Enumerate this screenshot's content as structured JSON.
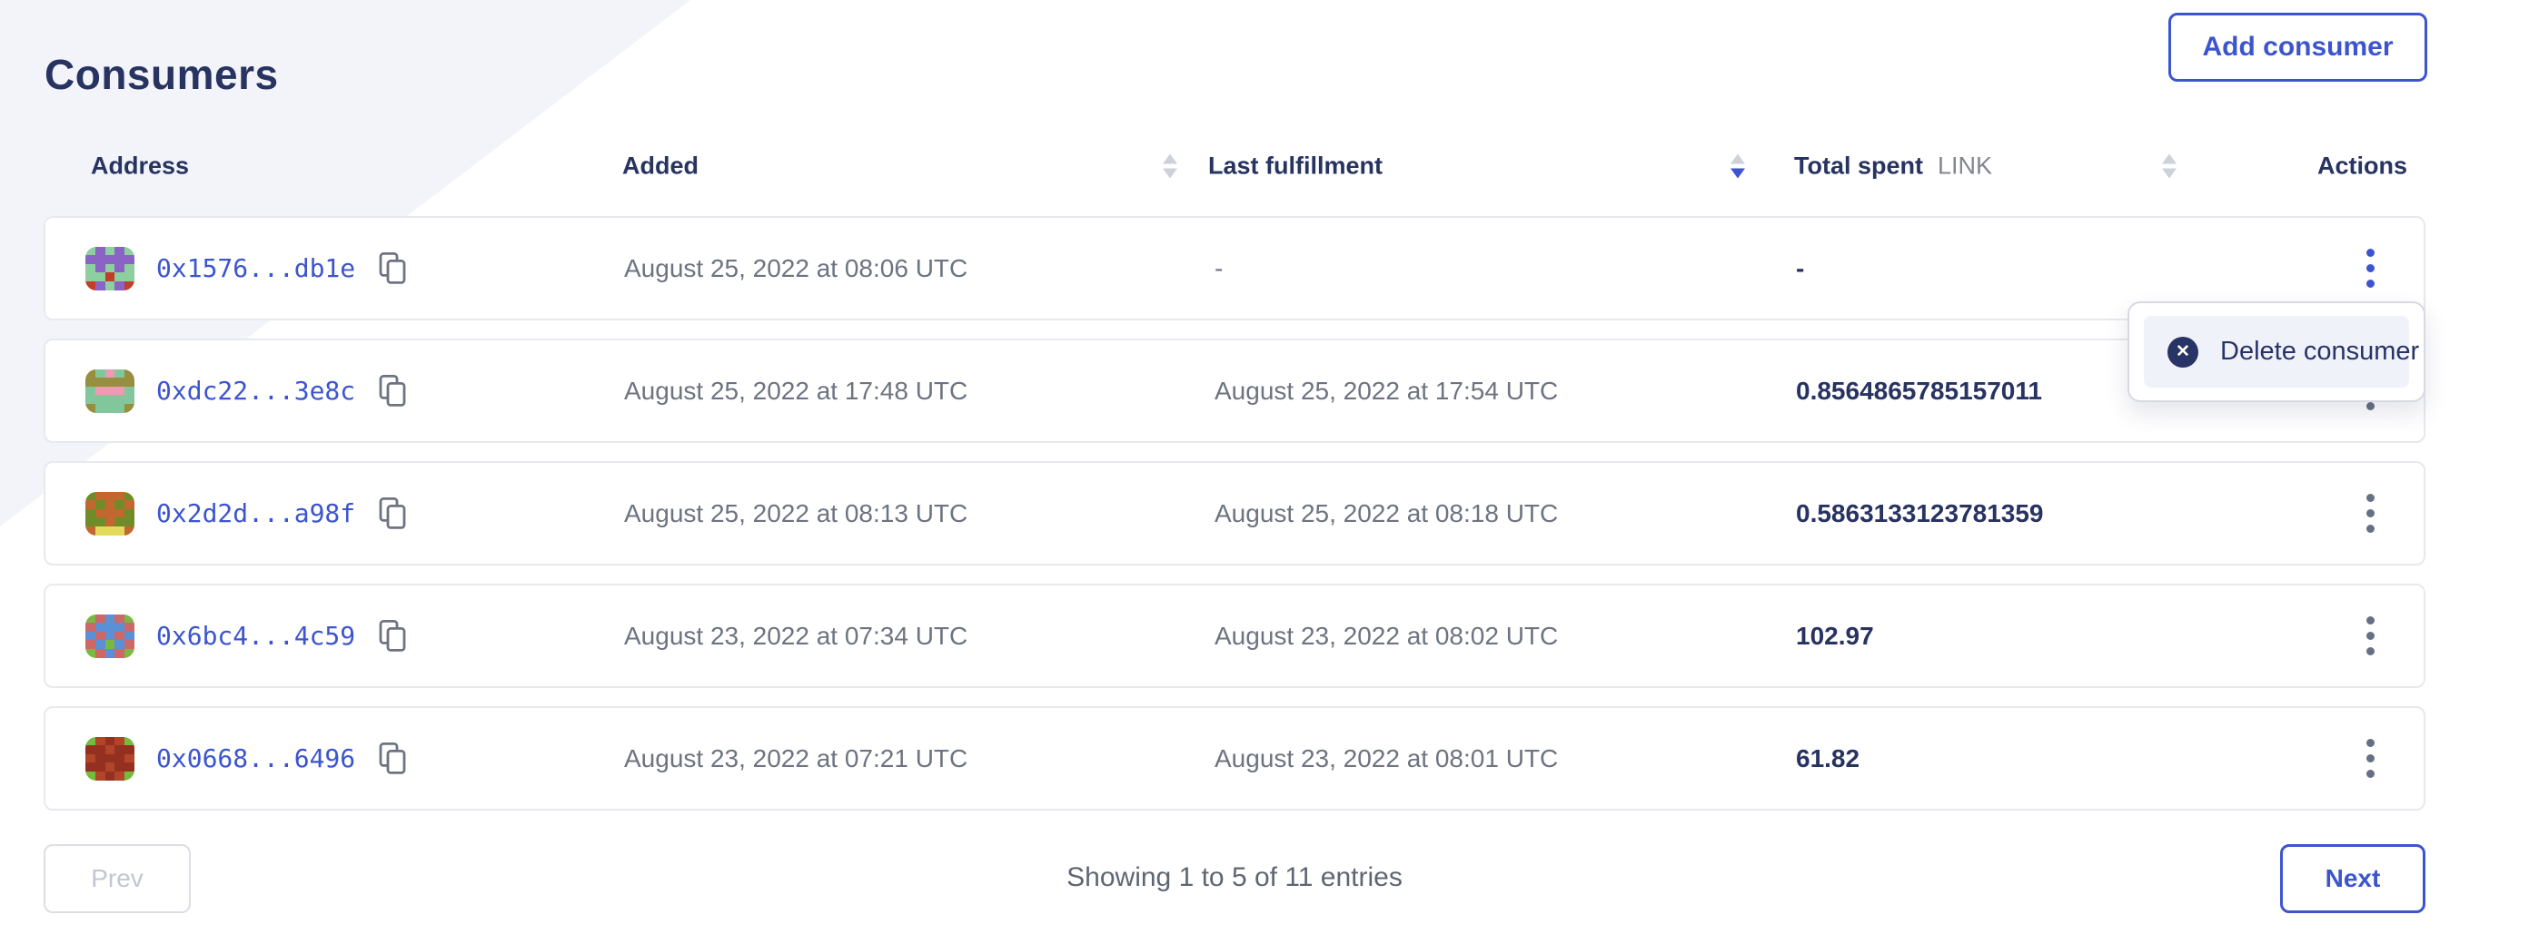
{
  "page": {
    "title": "Consumers"
  },
  "toolbar": {
    "add_button_label": "Add consumer"
  },
  "colors": {
    "accent_blue": "#3c55cf",
    "navy_text": "#273360",
    "gray_text": "#6d7380",
    "band_background": "#f3f4f9",
    "menu_item_background": "#f0f2fa"
  },
  "table": {
    "headers": {
      "address": "Address",
      "added": "Added",
      "last_fulfillment": "Last fulfillment",
      "total_spent": "Total spent",
      "total_spent_unit": "LINK",
      "actions": "Actions"
    },
    "sort_state": {
      "added": "none",
      "last_fulfillment": "desc",
      "total_spent": "none"
    },
    "rows": [
      {
        "address": "0x1576...db1e",
        "added": "August 25, 2022 at 08:06 UTC",
        "last_fulfillment": "-",
        "total_spent": "-",
        "menu_open": true,
        "avatar": {
          "palette": [
            "#8ecf9f",
            "#8a63c5",
            "#c03f2b"
          ],
          "grid": [
            [
              0,
              1,
              0,
              1,
              0
            ],
            [
              1,
              1,
              1,
              1,
              1
            ],
            [
              0,
              1,
              0,
              1,
              0
            ],
            [
              0,
              0,
              2,
              0,
              0
            ],
            [
              2,
              1,
              0,
              1,
              2
            ]
          ]
        }
      },
      {
        "address": "0xdc22...3e8c",
        "added": "August 25, 2022 at 17:48 UTC",
        "last_fulfillment": "August 25, 2022 at 17:54 UTC",
        "total_spent": "0.8564865785157011",
        "menu_open": false,
        "avatar": {
          "palette": [
            "#82c79b",
            "#978f3f",
            "#ef9ab5"
          ],
          "grid": [
            [
              1,
              0,
              2,
              0,
              1
            ],
            [
              1,
              1,
              1,
              1,
              1
            ],
            [
              0,
              2,
              2,
              2,
              0
            ],
            [
              0,
              0,
              0,
              0,
              0
            ],
            [
              1,
              0,
              0,
              0,
              1
            ]
          ]
        }
      },
      {
        "address": "0x2d2d...a98f",
        "added": "August 25, 2022 at 08:13 UTC",
        "last_fulfillment": "August 25, 2022 at 08:18 UTC",
        "total_spent": "0.5863133123781359",
        "menu_open": false,
        "avatar": {
          "palette": [
            "#c2672f",
            "#6f8c28",
            "#e3d95b"
          ],
          "grid": [
            [
              1,
              0,
              0,
              0,
              1
            ],
            [
              0,
              1,
              0,
              1,
              0
            ],
            [
              1,
              0,
              0,
              0,
              1
            ],
            [
              1,
              1,
              0,
              1,
              1
            ],
            [
              0,
              2,
              2,
              2,
              0
            ]
          ]
        }
      },
      {
        "address": "0x6bc4...4c59",
        "added": "August 23, 2022 at 07:34 UTC",
        "last_fulfillment": "August 23, 2022 at 08:02 UTC",
        "total_spent": "102.97",
        "menu_open": false,
        "avatar": {
          "palette": [
            "#5b8fd6",
            "#7db743",
            "#cd6868"
          ],
          "grid": [
            [
              1,
              2,
              0,
              2,
              1
            ],
            [
              2,
              0,
              0,
              0,
              2
            ],
            [
              0,
              2,
              0,
              2,
              0
            ],
            [
              2,
              0,
              1,
              0,
              2
            ],
            [
              1,
              2,
              0,
              2,
              1
            ]
          ]
        }
      },
      {
        "address": "0x0668...6496",
        "added": "August 23, 2022 at 07:21 UTC",
        "last_fulfillment": "August 23, 2022 at 08:01 UTC",
        "total_spent": "61.82",
        "menu_open": false,
        "avatar": {
          "palette": [
            "#93301f",
            "#b0452a",
            "#74bb3e"
          ],
          "grid": [
            [
              2,
              1,
              0,
              1,
              2
            ],
            [
              0,
              0,
              1,
              0,
              0
            ],
            [
              1,
              0,
              0,
              0,
              1
            ],
            [
              0,
              0,
              1,
              0,
              0
            ],
            [
              2,
              1,
              0,
              1,
              2
            ]
          ]
        }
      }
    ]
  },
  "context_menu": {
    "open": true,
    "items": [
      {
        "icon": "x-circle-icon",
        "label": "Delete consumer"
      }
    ]
  },
  "pagination": {
    "prev_label": "Prev",
    "next_label": "Next",
    "summary": "Showing 1 to 5 of 11 entries"
  }
}
